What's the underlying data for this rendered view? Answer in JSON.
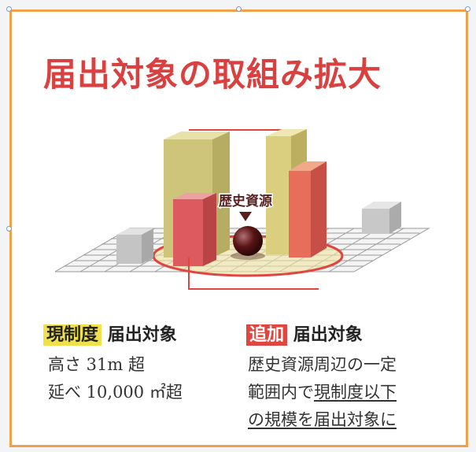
{
  "title": "届出対象の取組み拡大",
  "diagram": {
    "center_label": "歴史資源",
    "colors": {
      "title_red": "#d94040",
      "existing_yellow": "#d4cc7a",
      "new_red": "#dd5b5e",
      "outline_red": "#e0453f",
      "highlight_yellow": "#f0e04c",
      "frame_orange": "#f0a24a"
    }
  },
  "left": {
    "badge": "現制度",
    "heading": "届出対象",
    "lines": [
      "高さ 31m 超",
      "延べ 10,000 ㎡超"
    ]
  },
  "right": {
    "badge": "追加",
    "heading": "届出対象",
    "line1": "歴史資源周辺の一定",
    "line2_prefix": "範囲内で",
    "line2_underlined": "現制度以下",
    "line3": "の規模を届出対象に"
  }
}
